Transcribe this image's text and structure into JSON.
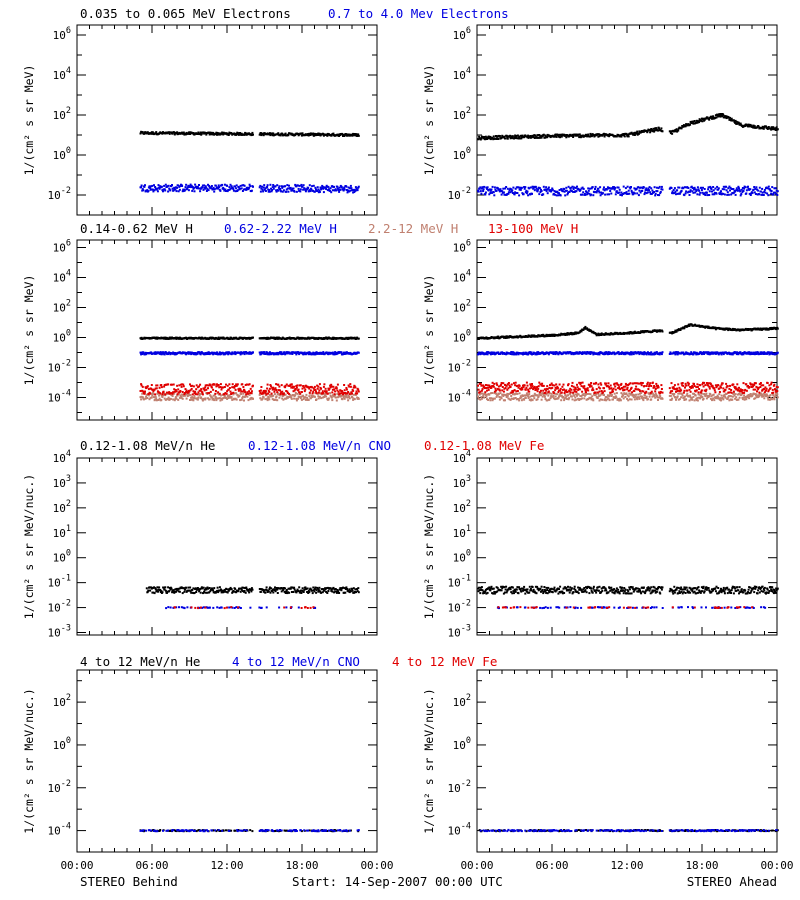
{
  "colors": {
    "black": "#000000",
    "blue": "#0000e0",
    "orange": "#c08070",
    "red": "#e00000"
  },
  "footer": {
    "left": "STEREO Behind",
    "center": "Start: 14-Sep-2007 00:00 UTC",
    "right": "STEREO Ahead"
  },
  "x_axis": {
    "ticks": [
      "00:00",
      "06:00",
      "12:00",
      "18:00",
      "00:00"
    ],
    "range_hours": [
      0,
      24
    ]
  },
  "chart_data": [
    {
      "type": "scatter",
      "row_titles": [
        {
          "text": "0.035 to 0.065 MeV Electrons",
          "color": "black"
        },
        {
          "text": "0.7 to 4.0 Mev Electrons",
          "color": "blue"
        }
      ],
      "ylabel": "1/(cm² s sr MeV)",
      "ylim_log10": [
        -3,
        6.5
      ],
      "yticks": [
        {
          "label": "10",
          "exp": "6",
          "log": 6
        },
        {
          "label": "10",
          "exp": "4",
          "log": 4
        },
        {
          "label": "10",
          "exp": "2",
          "log": 2
        },
        {
          "label": "10",
          "exp": "0",
          "log": 0
        },
        {
          "label": "10",
          "exp": "-2",
          "log": -2
        }
      ],
      "panels": [
        {
          "name": "STEREO Behind",
          "series": [
            {
              "color": "black",
              "gap_hours": [
                14.0,
                14.5
              ],
              "spread": 0.06,
              "profile": [
                [
                  5.0,
                  1.1
                ],
                [
                  14.0,
                  1.05
                ],
                [
                  19.0,
                  1.02
                ],
                [
                  22.5,
                  1.0
                ]
              ]
            },
            {
              "color": "blue",
              "gap_hours": [
                14.0,
                14.5
              ],
              "spread": 0.18,
              "profile": [
                [
                  5.0,
                  -1.65
                ],
                [
                  14.0,
                  -1.65
                ],
                [
                  22.5,
                  -1.7
                ]
              ]
            }
          ]
        },
        {
          "name": "STEREO Ahead",
          "series": [
            {
              "color": "black",
              "gap_hours": [
                14.8,
                15.3
              ],
              "spread": 0.08,
              "profile": [
                [
                  0.0,
                  0.85
                ],
                [
                  6.0,
                  0.95
                ],
                [
                  12.0,
                  1.0
                ],
                [
                  14.5,
                  1.3
                ],
                [
                  15.5,
                  1.1
                ],
                [
                  17.0,
                  1.6
                ],
                [
                  19.5,
                  2.0
                ],
                [
                  21.0,
                  1.5
                ],
                [
                  24.0,
                  1.3
                ]
              ]
            },
            {
              "color": "blue",
              "gap_hours": [
                14.8,
                15.3
              ],
              "spread": 0.22,
              "profile": [
                [
                  0.0,
                  -1.8
                ],
                [
                  24.0,
                  -1.8
                ]
              ]
            }
          ]
        }
      ]
    },
    {
      "type": "scatter",
      "row_titles": [
        {
          "text": "0.14-0.62 MeV H",
          "color": "black"
        },
        {
          "text": "0.62-2.22 MeV H",
          "color": "blue"
        },
        {
          "text": "2.2-12 MeV H",
          "color": "orange"
        },
        {
          "text": "13-100 MeV H",
          "color": "red"
        }
      ],
      "ylabel": "1/(cm² s sr MeV)",
      "ylim_log10": [
        -5.5,
        6.5
      ],
      "yticks": [
        {
          "label": "10",
          "exp": "6",
          "log": 6
        },
        {
          "label": "10",
          "exp": "4",
          "log": 4
        },
        {
          "label": "10",
          "exp": "2",
          "log": 2
        },
        {
          "label": "10",
          "exp": "0",
          "log": 0
        },
        {
          "label": "10",
          "exp": "-2",
          "log": -2
        },
        {
          "label": "10",
          "exp": "-4",
          "log": -4
        }
      ],
      "panels": [
        {
          "name": "STEREO Behind",
          "series": [
            {
              "color": "black",
              "gap_hours": [
                14.0,
                14.5
              ],
              "spread": 0.05,
              "profile": [
                [
                  5.0,
                  -0.05
                ],
                [
                  22.5,
                  -0.05
                ]
              ]
            },
            {
              "color": "blue",
              "gap_hours": [
                14.0,
                14.5
              ],
              "spread": 0.08,
              "profile": [
                [
                  5.0,
                  -1.05
                ],
                [
                  22.5,
                  -1.05
                ]
              ]
            },
            {
              "color": "orange",
              "gap_hours": [
                14.0,
                14.5
              ],
              "spread": 0.25,
              "profile": [
                [
                  5.0,
                  -3.95
                ],
                [
                  22.5,
                  -3.95
                ]
              ]
            },
            {
              "color": "red",
              "gap_hours": [
                14.0,
                14.5
              ],
              "spread": 0.35,
              "profile": [
                [
                  5.0,
                  -3.45
                ],
                [
                  22.5,
                  -3.45
                ]
              ]
            }
          ]
        },
        {
          "name": "STEREO Ahead",
          "series": [
            {
              "color": "black",
              "gap_hours": [
                14.8,
                15.3
              ],
              "spread": 0.06,
              "profile": [
                [
                  0.0,
                  -0.05
                ],
                [
                  6.0,
                  0.15
                ],
                [
                  8.0,
                  0.3
                ],
                [
                  8.6,
                  0.65
                ],
                [
                  9.5,
                  0.2
                ],
                [
                  12.0,
                  0.3
                ],
                [
                  14.5,
                  0.45
                ],
                [
                  15.5,
                  0.3
                ],
                [
                  17.0,
                  0.85
                ],
                [
                  19.0,
                  0.6
                ],
                [
                  21.0,
                  0.5
                ],
                [
                  24.0,
                  0.6
                ]
              ]
            },
            {
              "color": "blue",
              "gap_hours": [
                14.8,
                15.3
              ],
              "spread": 0.08,
              "profile": [
                [
                  0.0,
                  -1.05
                ],
                [
                  24.0,
                  -1.05
                ]
              ]
            },
            {
              "color": "orange",
              "gap_hours": [
                14.8,
                15.3
              ],
              "spread": 0.25,
              "profile": [
                [
                  0.0,
                  -3.95
                ],
                [
                  24.0,
                  -3.95
                ]
              ]
            },
            {
              "color": "red",
              "gap_hours": [
                14.8,
                15.3
              ],
              "spread": 0.35,
              "profile": [
                [
                  0.0,
                  -3.35
                ],
                [
                  24.0,
                  -3.35
                ]
              ]
            }
          ]
        }
      ]
    },
    {
      "type": "scatter",
      "row_titles": [
        {
          "text": "0.12-1.08 MeV/n He",
          "color": "black"
        },
        {
          "text": "0.12-1.08 MeV/n CNO",
          "color": "blue"
        },
        {
          "text": "0.12-1.08 MeV Fe",
          "color": "red"
        }
      ],
      "ylabel": "1/(cm² s sr MeV/nuc.)",
      "ylim_log10": [
        -3.1,
        4.0
      ],
      "yticks": [
        {
          "label": "10",
          "exp": "4",
          "log": 4
        },
        {
          "label": "10",
          "exp": "3",
          "log": 3
        },
        {
          "label": "10",
          "exp": "2",
          "log": 2
        },
        {
          "label": "10",
          "exp": "1",
          "log": 1
        },
        {
          "label": "10",
          "exp": "0",
          "log": 0
        },
        {
          "label": "10",
          "exp": "-1",
          "log": -1
        },
        {
          "label": "10",
          "exp": "-2",
          "log": -2
        },
        {
          "label": "10",
          "exp": "-3",
          "log": -3
        }
      ],
      "panels": [
        {
          "name": "STEREO Behind",
          "series": [
            {
              "color": "black",
              "gap_hours": [
                14.0,
                14.5
              ],
              "spread": 0.12,
              "profile": [
                [
                  5.5,
                  -1.3
                ],
                [
                  22.5,
                  -1.3
                ]
              ]
            },
            {
              "color": "blue",
              "gap_hours": [
                14.0,
                14.5
              ],
              "spread": 0.02,
              "density": 0.18,
              "profile": [
                [
                  7.0,
                  -2.0
                ],
                [
                  19.0,
                  -2.0
                ]
              ]
            },
            {
              "color": "red",
              "gap_hours": [
                14.0,
                14.5
              ],
              "spread": 0.02,
              "density": 0.08,
              "profile": [
                [
                  7.0,
                  -2.0
                ],
                [
                  19.0,
                  -2.0
                ]
              ]
            }
          ]
        },
        {
          "name": "STEREO Ahead",
          "series": [
            {
              "color": "black",
              "gap_hours": [
                14.8,
                15.3
              ],
              "spread": 0.14,
              "profile": [
                [
                  0.0,
                  -1.3
                ],
                [
                  24.0,
                  -1.3
                ]
              ]
            },
            {
              "color": "blue",
              "gap_hours": [
                14.8,
                15.3
              ],
              "spread": 0.02,
              "density": 0.18,
              "profile": [
                [
                  1.5,
                  -2.0
                ],
                [
                  23.0,
                  -2.0
                ]
              ]
            },
            {
              "color": "red",
              "gap_hours": [
                14.8,
                15.3
              ],
              "spread": 0.02,
              "density": 0.08,
              "profile": [
                [
                  1.5,
                  -2.0
                ],
                [
                  23.0,
                  -2.0
                ]
              ]
            }
          ]
        }
      ]
    },
    {
      "type": "scatter",
      "row_titles": [
        {
          "text": "4 to 12 MeV/n He",
          "color": "black"
        },
        {
          "text": "4 to 12 MeV/n CNO",
          "color": "blue"
        },
        {
          "text": "4 to 12 MeV Fe",
          "color": "red"
        }
      ],
      "ylabel": "1/(cm² s sr MeV/nuc.)",
      "ylim_log10": [
        -5.0,
        3.5
      ],
      "yticks": [
        {
          "label": "10",
          "exp": "2",
          "log": 2
        },
        {
          "label": "10",
          "exp": "0",
          "log": 0
        },
        {
          "label": "10",
          "exp": "-2",
          "log": -2
        },
        {
          "label": "10",
          "exp": "-4",
          "log": -4
        }
      ],
      "panels": [
        {
          "name": "STEREO Behind",
          "series": [
            {
              "color": "black",
              "gap_hours": [
                14.0,
                14.5
              ],
              "spread": 0.03,
              "density": 0.35,
              "profile": [
                [
                  5.0,
                  -4.0
                ],
                [
                  22.5,
                  -4.0
                ]
              ]
            },
            {
              "color": "blue",
              "gap_hours": [
                14.0,
                14.5
              ],
              "spread": 0.03,
              "density": 0.3,
              "profile": [
                [
                  5.0,
                  -4.0
                ],
                [
                  22.5,
                  -4.0
                ]
              ]
            }
          ]
        },
        {
          "name": "STEREO Ahead",
          "series": [
            {
              "color": "black",
              "gap_hours": [
                14.8,
                15.3
              ],
              "spread": 0.03,
              "density": 0.35,
              "profile": [
                [
                  0.0,
                  -4.0
                ],
                [
                  24.0,
                  -4.0
                ]
              ]
            },
            {
              "color": "blue",
              "gap_hours": [
                14.8,
                15.3
              ],
              "spread": 0.03,
              "density": 0.3,
              "profile": [
                [
                  0.0,
                  -4.0
                ],
                [
                  24.0,
                  -4.0
                ]
              ]
            }
          ]
        }
      ]
    }
  ]
}
